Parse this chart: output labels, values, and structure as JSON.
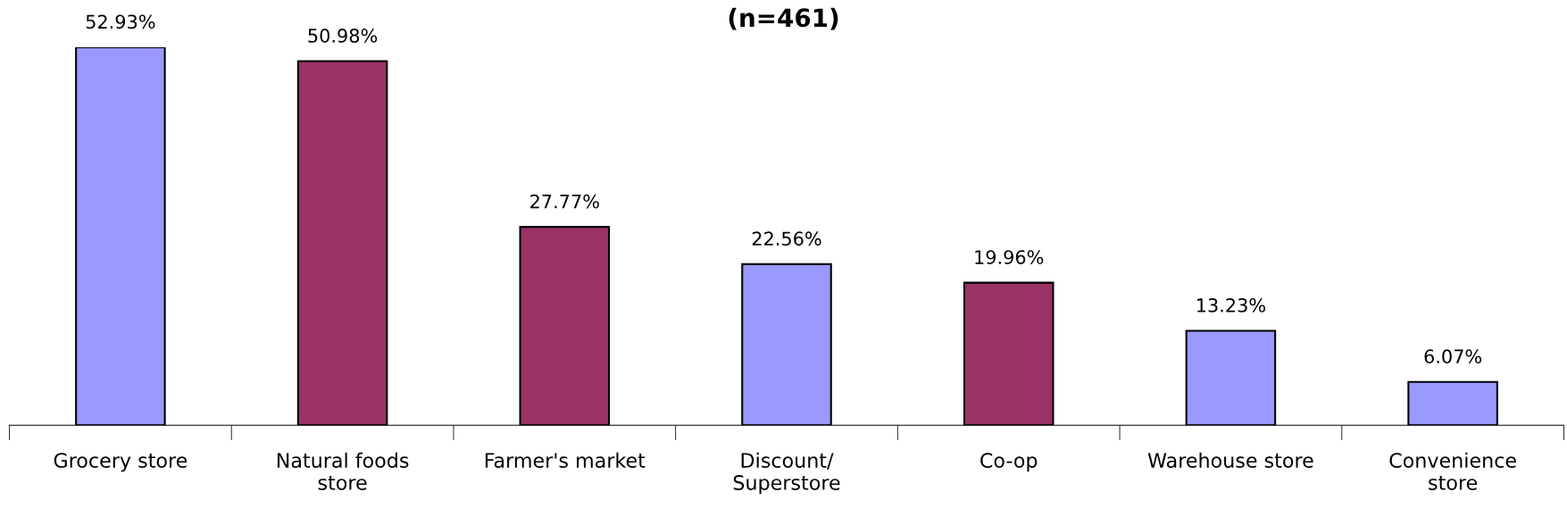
{
  "chart_data": {
    "type": "bar",
    "title": "(n=461)",
    "categories": [
      "Grocery store",
      "Natural foods\nstore",
      "Farmer's market",
      "Discount/\nSuperstore",
      "Co-op",
      "Warehouse store",
      "Convenience\nstore"
    ],
    "values": [
      52.93,
      50.98,
      27.77,
      22.56,
      19.96,
      13.23,
      6.07
    ],
    "value_labels": [
      "52.93%",
      "50.98%",
      "27.77%",
      "22.56%",
      "19.96%",
      "13.23%",
      "6.07%"
    ],
    "colors": [
      "#9999ff",
      "#993366",
      "#993366",
      "#9999ff",
      "#993366",
      "#9999ff",
      "#9999ff"
    ],
    "grid": false,
    "legend": false
  }
}
